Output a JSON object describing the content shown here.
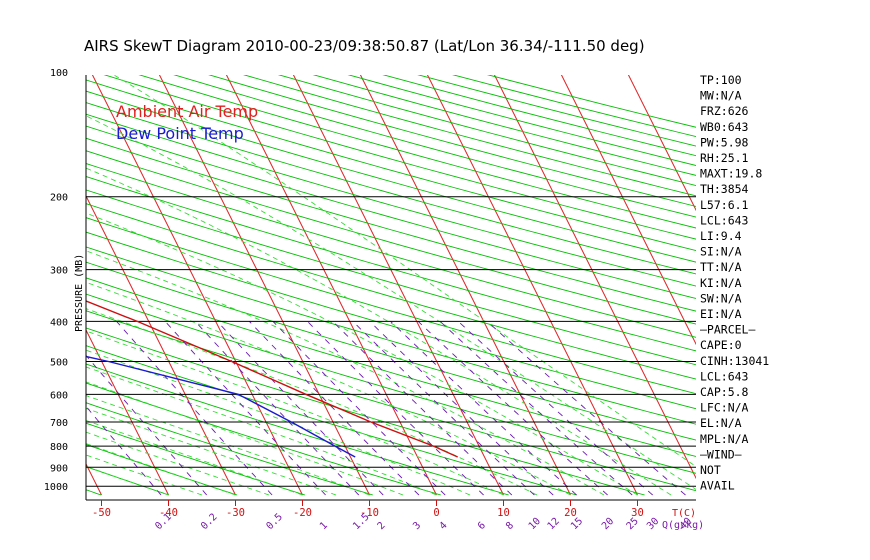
{
  "chart_data": {
    "type": "line",
    "title": "AIRS SkewT Diagram 2010-00-23/09:38:50.87 (Lat/Lon 36.34/-111.50 deg)",
    "ylabel": "PRESSURE (MB)",
    "xlabel_bottom": "T(C)",
    "mixing_label": "Q(g/kg)",
    "pressure_ticks": [
      100,
      200,
      300,
      400,
      500,
      600,
      700,
      800,
      900,
      1000
    ],
    "pressure_range": [
      100,
      1050
    ],
    "bottom_temp_ticks": [
      -50,
      -40,
      -30,
      -20,
      -10,
      0,
      10,
      20,
      30
    ],
    "top_temp_ticks": [
      -120,
      -110,
      -100,
      -90,
      -80,
      -70,
      -60,
      -50,
      -40
    ],
    "mixing_ratio_ticks": [
      "0.1",
      "0.2",
      "0.5",
      "1",
      "1.5",
      "2",
      "3",
      "4",
      "6",
      "8",
      "10",
      "12",
      "15",
      "20",
      "25",
      "30",
      "40"
    ],
    "legend": [
      {
        "name": "Ambient Air Temp",
        "color": "#e02020"
      },
      {
        "name": "Dew Point Temp",
        "color": "#1a1ad0"
      }
    ],
    "series": [
      {
        "name": "Ambient Air Temp",
        "color": "#cc1010",
        "points": [
          {
            "p": 100,
            "t": -66.0
          },
          {
            "p": 150,
            "t": -60.9
          },
          {
            "p": 200,
            "t": -59.7
          },
          {
            "p": 250,
            "t": -55.3
          },
          {
            "p": 300,
            "t": -47.3
          },
          {
            "p": 400,
            "t": -31.7
          },
          {
            "p": 500,
            "t": -20.6
          },
          {
            "p": 600,
            "t": -12.0
          },
          {
            "p": 700,
            "t": -4.3
          },
          {
            "p": 800,
            "t": 3.2
          },
          {
            "p": 850,
            "t": 6.0
          }
        ]
      },
      {
        "name": "Dew Point Temp",
        "color": "#1a1ad0",
        "points": [
          {
            "p": 100,
            "t": -96.0
          },
          {
            "p": 150,
            "t": -94.6
          },
          {
            "p": 200,
            "t": -88.0
          },
          {
            "p": 300,
            "t": -77.6
          },
          {
            "p": 400,
            "t": -62.8
          },
          {
            "p": 500,
            "t": -39.0
          },
          {
            "p": 600,
            "t": -22.1
          },
          {
            "p": 700,
            "t": -16.2
          },
          {
            "p": 800,
            "t": -11.5
          },
          {
            "p": 850,
            "t": -9.3
          }
        ]
      }
    ]
  },
  "indices": [
    "TP:100",
    "MW:N/A",
    "FRZ:626",
    "WB0:643",
    "PW:5.98",
    "RH:25.1",
    "MAXT:19.8",
    "TH:3854",
    "L57:6.1",
    "LCL:643",
    "LI:9.4",
    "SI:N/A",
    "TT:N/A",
    "KI:N/A",
    "SW:N/A",
    "EI:N/A",
    "—PARCEL—",
    "CAPE:0",
    "CINH:13041",
    "LCL:643",
    "CAP:5.8",
    "LFC:N/A",
    "EL:N/A",
    "MPL:N/A",
    "—WIND—",
    "NOT",
    "AVAIL"
  ],
  "colors": {
    "isotherm": "#e02020",
    "dry_adiabat": "#00c000",
    "moist_adiabat": "#33dd33",
    "mixing_ratio": "#6a1ab0",
    "tick_red": "#d01010",
    "tick_purple": "#7a1aa8"
  }
}
